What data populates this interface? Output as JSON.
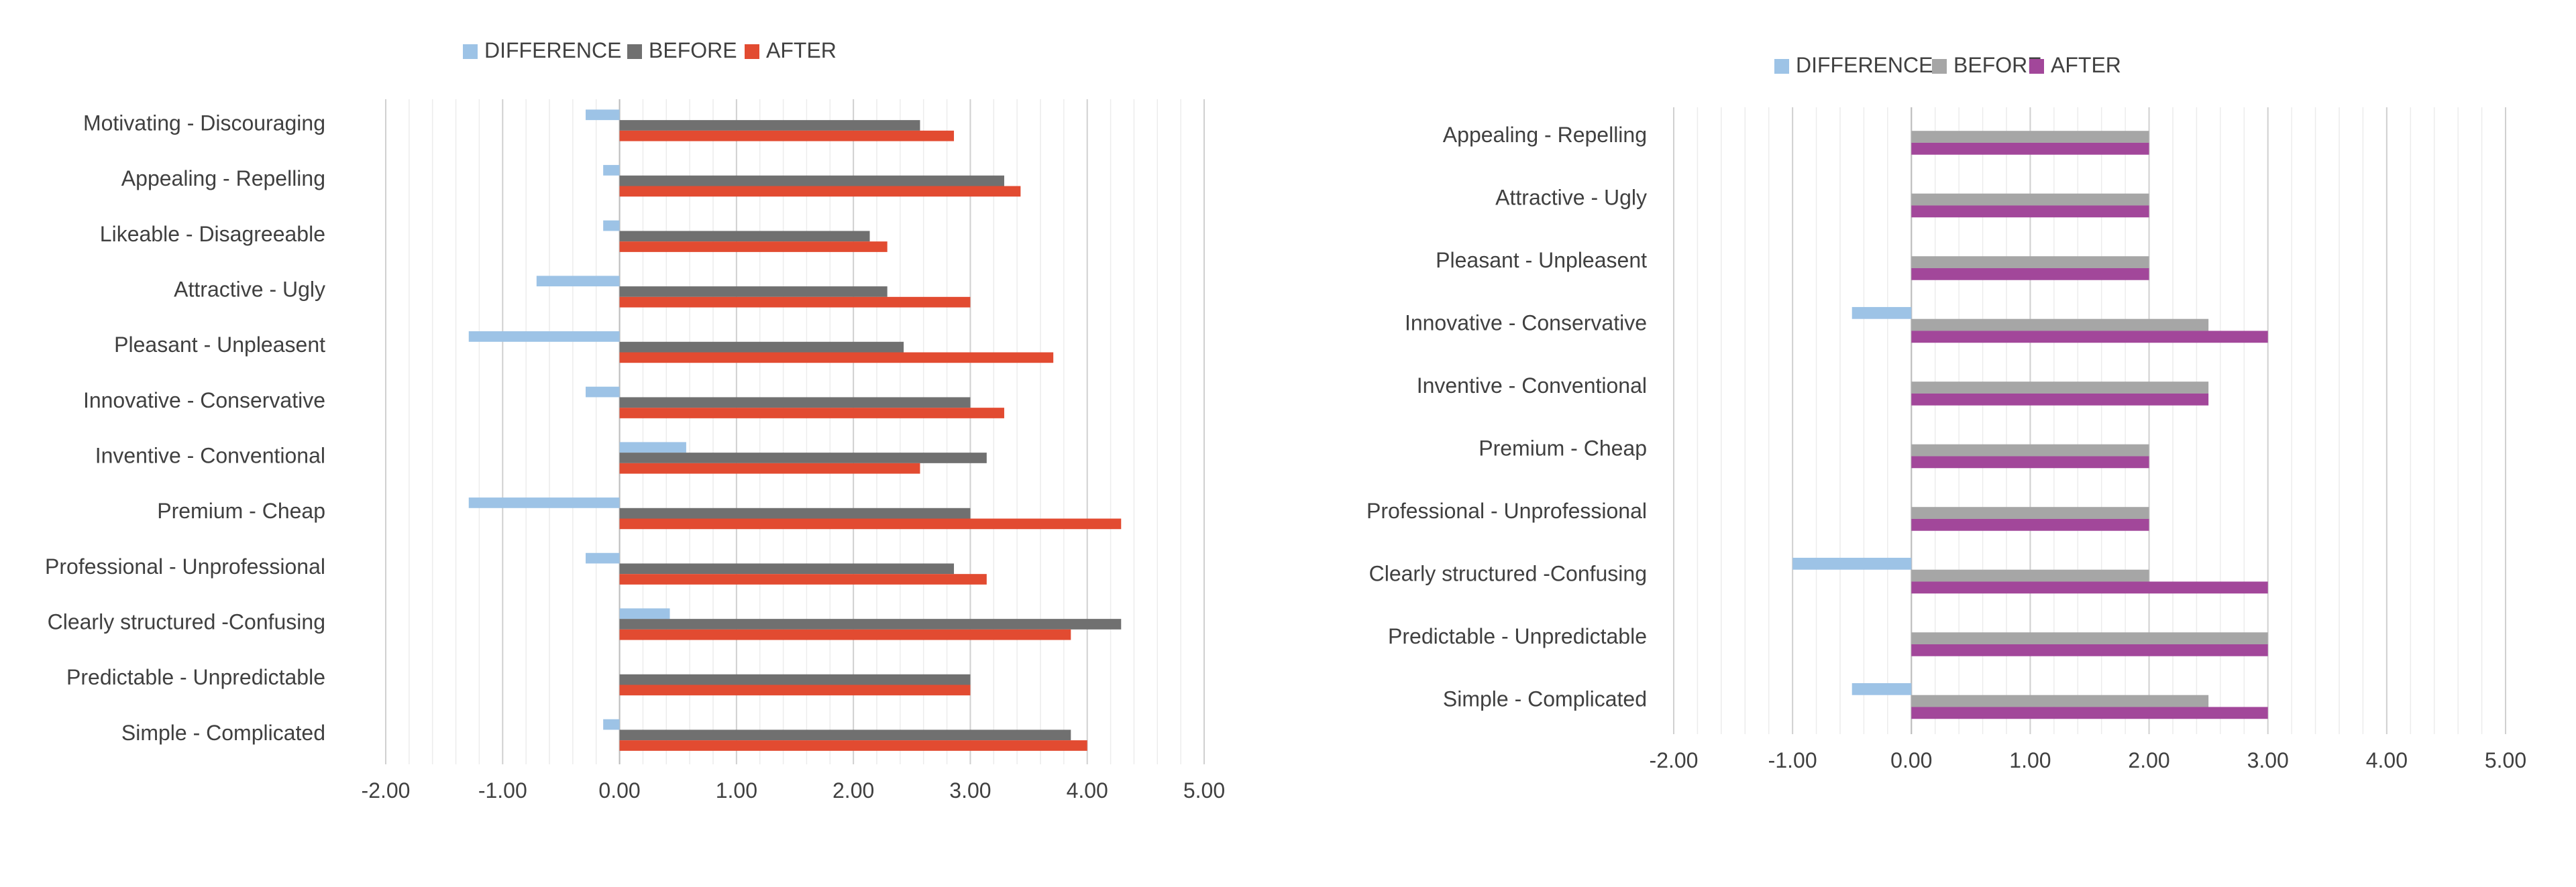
{
  "chart_data": [
    {
      "type": "bar",
      "orientation": "horizontal",
      "title": "",
      "xlabel": "",
      "ylabel": "",
      "xlim": [
        -2,
        5
      ],
      "x_ticks": [
        "-2.00",
        "-1.00",
        "0.00",
        "1.00",
        "2.00",
        "3.00",
        "4.00",
        "5.00"
      ],
      "grid": true,
      "legend_position": "top",
      "categories": [
        "Motivating - Discouraging",
        "Appealing - Repelling",
        "Likeable - Disagreeable",
        "Attractive - Ugly",
        "Pleasant - Unpleasent",
        "Innovative - Conservative",
        "Inventive - Conventional",
        "Premium - Cheap",
        "Professional - Unprofessional",
        "Clearly structured -Confusing",
        "Predictable - Unpredictable",
        "Simple - Complicated"
      ],
      "series": [
        {
          "name": "DIFFERENCE",
          "color": "#9DC3E6",
          "values": [
            -0.29,
            -0.14,
            -0.14,
            -0.71,
            -1.29,
            -0.29,
            0.57,
            -1.29,
            -0.29,
            0.43,
            0.0,
            -0.14
          ]
        },
        {
          "name": "BEFORE",
          "color": "#707070",
          "values": [
            2.57,
            3.29,
            2.14,
            2.29,
            2.43,
            3.0,
            3.14,
            3.0,
            2.86,
            4.29,
            3.0,
            3.86
          ]
        },
        {
          "name": "AFTER",
          "color": "#E24B31",
          "values": [
            2.86,
            3.43,
            2.29,
            3.0,
            3.71,
            3.29,
            2.57,
            4.29,
            3.14,
            3.86,
            3.0,
            4.0
          ]
        }
      ]
    },
    {
      "type": "bar",
      "orientation": "horizontal",
      "title": "",
      "xlabel": "",
      "ylabel": "",
      "xlim": [
        -2,
        5
      ],
      "x_ticks": [
        "-2.00",
        "-1.00",
        "0.00",
        "1.00",
        "2.00",
        "3.00",
        "4.00",
        "5.00"
      ],
      "grid": true,
      "legend_position": "top",
      "categories": [
        "Appealing - Repelling",
        "Attractive - Ugly",
        "Pleasant - Unpleasent",
        "Innovative - Conservative",
        "Inventive - Conventional",
        "Premium - Cheap",
        "Professional - Unprofessional",
        "Clearly structured -Confusing",
        "Predictable - Unpredictable",
        "Simple - Complicated"
      ],
      "series": [
        {
          "name": "DIFFERENCE",
          "color": "#9DC3E6",
          "values": [
            0,
            0,
            0,
            -0.5,
            0,
            0,
            0,
            -1.0,
            0,
            -0.5
          ]
        },
        {
          "name": "BEFORE",
          "color": "#A6A6A6",
          "values": [
            2.0,
            2.0,
            2.0,
            2.5,
            2.5,
            2.0,
            2.0,
            2.0,
            3.0,
            2.5
          ]
        },
        {
          "name": "AFTER",
          "color": "#A2479A",
          "values": [
            2.0,
            2.0,
            2.0,
            3.0,
            2.5,
            2.0,
            2.0,
            3.0,
            3.0,
            3.0
          ]
        }
      ]
    }
  ]
}
